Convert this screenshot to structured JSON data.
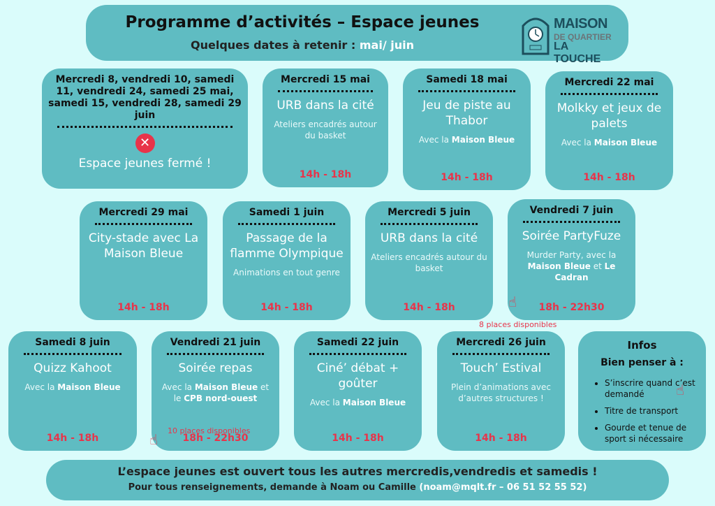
{
  "header": {
    "title": "Programme d’activités – Espace jeunes",
    "subtitle": "Quelques dates à retenir :",
    "subtitle_highlight": "mai/ juin",
    "logo": {
      "line1": "MAISON",
      "line2": "DE QUARTIER",
      "line3": "LA TOUCHE"
    }
  },
  "colors": {
    "card": "#5fbcc2",
    "background": "#dafcfb",
    "time": "#e8344a"
  },
  "cards": [
    {
      "date": "Mercredi 8, vendredi 10, samedi 11, vendredi 24, samedi 25 mai, samedi 15, vendredi 28, samedi 29 juin",
      "closed_icon": "x-circle-icon",
      "title": "Espace jeunes fermé !"
    },
    {
      "date": "Mercredi 15 mai",
      "title": "URB dans la cité",
      "desc": [
        {
          "t": "Ateliers encadrés autour du basket"
        }
      ],
      "time": "14h - 18h"
    },
    {
      "date": "Samedi 18 mai",
      "title": "Jeu de piste au Thabor",
      "desc": [
        {
          "t": "Avec la "
        },
        {
          "t": "Maison Bleue",
          "b": true
        }
      ],
      "time": "14h - 18h"
    },
    {
      "date": "Mercredi 22 mai",
      "title": "Molkky et jeux de palets",
      "desc": [
        {
          "t": "Avec la "
        },
        {
          "t": "Maison Bleue",
          "b": true
        }
      ],
      "time": "14h - 18h"
    },
    {
      "date": "Mercredi 29 mai",
      "title": "City-stade avec La Maison Bleue",
      "time": "14h - 18h"
    },
    {
      "date": "Samedi 1 juin",
      "title": "Passage de la flamme Olympique",
      "desc": [
        {
          "t": "Animations en tout genre"
        }
      ],
      "time": "14h - 18h"
    },
    {
      "date": "Mercredi 5 juin",
      "title": "URB dans la cité",
      "desc": [
        {
          "t": "Ateliers encadrés autour du basket"
        }
      ],
      "time": "14h - 18h"
    },
    {
      "date": "Vendredi 7 juin",
      "title": "Soirée PartyFuze",
      "desc": [
        {
          "t": "Murder Party, avec la "
        },
        {
          "t": "Maison Bleue",
          "b": true
        },
        {
          "t": " et "
        },
        {
          "t": "Le Cadran",
          "b": true
        }
      ],
      "time": "18h - 22h30",
      "places": "8 places disponibles"
    },
    {
      "date": "Samedi 8 juin",
      "title": "Quizz Kahoot",
      "desc": [
        {
          "t": "Avec la "
        },
        {
          "t": "Maison Bleue",
          "b": true
        }
      ],
      "time": "14h - 18h"
    },
    {
      "date": "Vendredi 21 juin",
      "title": "Soirée repas",
      "desc": [
        {
          "t": "Avec la "
        },
        {
          "t": "Maison Bleue",
          "b": true
        },
        {
          "t": " et le "
        },
        {
          "t": "CPB nord-ouest",
          "b": true
        }
      ],
      "time": "18h - 22h30",
      "places": "10 places disponibles"
    },
    {
      "date": "Samedi 22 juin",
      "title": "Ciné’ débat + goûter",
      "desc": [
        {
          "t": "Avec la "
        },
        {
          "t": "Maison Bleue",
          "b": true
        }
      ],
      "time": "14h - 18h"
    },
    {
      "date": "Mercredi 26 juin",
      "title": "Touch’ Estival",
      "desc": [
        {
          "t": "Plein d’animations avec d’autres structures !"
        }
      ],
      "time": "14h - 18h"
    }
  ],
  "infos": {
    "title": "Infos",
    "subtitle": "Bien penser à :",
    "items": [
      "S’inscrire quand c’est demandé",
      "Titre de transport",
      "Gourde et tenue de sport si nécessaire"
    ]
  },
  "footer": {
    "line1": "L’espace jeunes est ouvert tous les autres mercredis,vendredis et samedis !",
    "line2": "Pour tous renseignements, demande à Noam ou Camille",
    "contact": "(noam@mqlt.fr – 06 51 52 55 52)"
  }
}
